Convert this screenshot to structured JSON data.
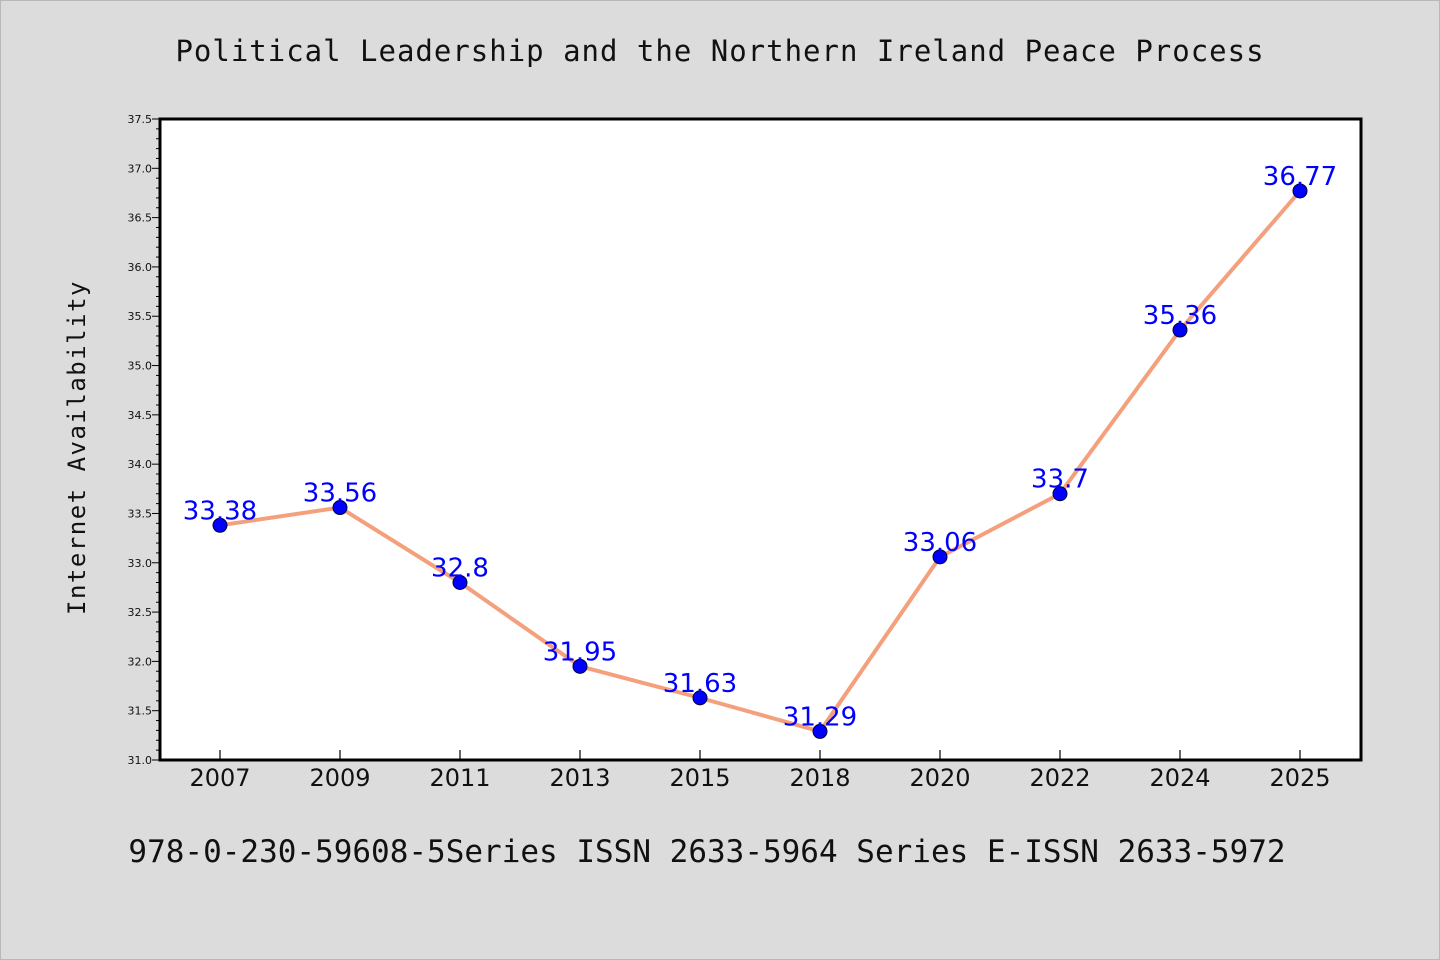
{
  "chart_data": {
    "type": "line",
    "title": "Political Leadership and the Northern Ireland Peace Process",
    "xlabel": "",
    "ylabel": "Internet Availability",
    "categories": [
      "2007",
      "2009",
      "2011",
      "2013",
      "2015",
      "2018",
      "2020",
      "2022",
      "2024",
      "2025"
    ],
    "values": [
      33.38,
      33.56,
      32.8,
      31.95,
      31.63,
      31.29,
      33.06,
      33.7,
      35.36,
      36.77
    ],
    "data_labels": [
      "33.38",
      "33.56",
      "32.8",
      "31.95",
      "31.63",
      "31.29",
      "33.06",
      "33.7",
      "35.36",
      "36.77"
    ],
    "ylim": [
      31.0,
      37.5
    ],
    "yticks": [
      "31.0",
      "31.5",
      "32.0",
      "32.5",
      "33.0",
      "33.5",
      "34.0",
      "34.5",
      "35.0",
      "35.5",
      "36.0",
      "36.5",
      "37.0",
      "37.5"
    ],
    "grid": false,
    "legend": "none",
    "line_color": "#f4a07c",
    "marker_color": "#0000ff",
    "label_color": "#0000ff"
  },
  "footer": {
    "text": "978-0-230-59608-5Series ISSN 2633-5964 Series E-ISSN 2633-5972"
  },
  "background_color": "#dcdcdc"
}
